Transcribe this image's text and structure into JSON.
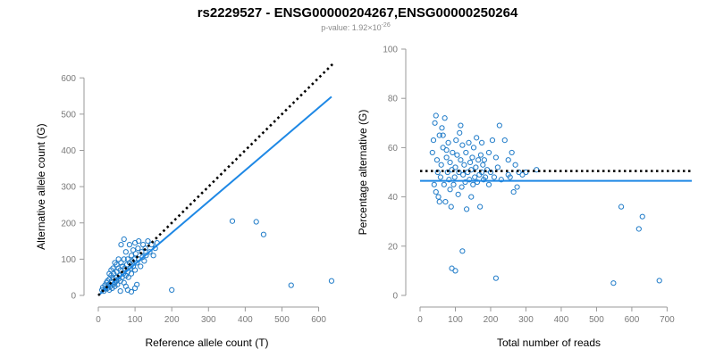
{
  "figure": {
    "title": "rs2229527 - ENSG00000204267,ENSG00000250264",
    "subtitle": "p-value: 1.92×10",
    "subtitle_exp": "-26"
  },
  "colors": {
    "points": "#1f7bc8",
    "fit": "#1e88e5",
    "reference": "#000000",
    "axis": "#9a9a9a",
    "tick_text": "#7a7a7a"
  },
  "chart_data": [
    {
      "type": "scatter",
      "title": "",
      "xlabel": "Reference allele count (T)",
      "ylabel": "Alternative allele count (G)",
      "xlim": [
        0,
        640
      ],
      "ylim": [
        0,
        640
      ],
      "xticks": [
        0,
        100,
        200,
        300,
        400,
        500,
        600
      ],
      "yticks": [
        0,
        100,
        200,
        300,
        400,
        500,
        600
      ],
      "grid": false,
      "reference_line": {
        "style": "dotted",
        "color": "#000000",
        "points": [
          [
            0,
            0
          ],
          [
            640,
            640
          ]
        ]
      },
      "fit_line": {
        "style": "solid",
        "color": "#1e88e5",
        "points": [
          [
            0,
            0
          ],
          [
            635,
            548
          ]
        ]
      },
      "points": [
        [
          10,
          15
        ],
        [
          12,
          22
        ],
        [
          15,
          12
        ],
        [
          18,
          28
        ],
        [
          20,
          18
        ],
        [
          22,
          35
        ],
        [
          25,
          20
        ],
        [
          25,
          40
        ],
        [
          28,
          30
        ],
        [
          30,
          15
        ],
        [
          30,
          45
        ],
        [
          32,
          25
        ],
        [
          35,
          38
        ],
        [
          35,
          55
        ],
        [
          38,
          20
        ],
        [
          40,
          30
        ],
        [
          40,
          48
        ],
        [
          42,
          60
        ],
        [
          45,
          35
        ],
        [
          45,
          25
        ],
        [
          48,
          50
        ],
        [
          50,
          40
        ],
        [
          50,
          65
        ],
        [
          52,
          30
        ],
        [
          55,
          45
        ],
        [
          55,
          75
        ],
        [
          58,
          55
        ],
        [
          60,
          40
        ],
        [
          60,
          70
        ],
        [
          62,
          90
        ],
        [
          65,
          50
        ],
        [
          65,
          80
        ],
        [
          68,
          60
        ],
        [
          70,
          35
        ],
        [
          70,
          100
        ],
        [
          72,
          75
        ],
        [
          75,
          55
        ],
        [
          75,
          120
        ],
        [
          78,
          85
        ],
        [
          80,
          65
        ],
        [
          80,
          100
        ],
        [
          82,
          50
        ],
        [
          85,
          90
        ],
        [
          85,
          140
        ],
        [
          88,
          75
        ],
        [
          90,
          110
        ],
        [
          90,
          60
        ],
        [
          92,
          95
        ],
        [
          95,
          80
        ],
        [
          95,
          125
        ],
        [
          98,
          100
        ],
        [
          100,
          70
        ],
        [
          100,
          145
        ],
        [
          102,
          115
        ],
        [
          105,
          90
        ],
        [
          108,
          130
        ],
        [
          110,
          100
        ],
        [
          110,
          150
        ],
        [
          115,
          80
        ],
        [
          118,
          120
        ],
        [
          120,
          105
        ],
        [
          122,
          140
        ],
        [
          125,
          95
        ],
        [
          128,
          130
        ],
        [
          130,
          110
        ],
        [
          135,
          150
        ],
        [
          140,
          120
        ],
        [
          145,
          140
        ],
        [
          150,
          110
        ],
        [
          155,
          130
        ],
        [
          160,
          145
        ],
        [
          70,
          155
        ],
        [
          62,
          140
        ],
        [
          60,
          12
        ],
        [
          75,
          25
        ],
        [
          80,
          15
        ],
        [
          90,
          10
        ],
        [
          100,
          20
        ],
        [
          105,
          30
        ],
        [
          40,
          75
        ],
        [
          45,
          90
        ],
        [
          50,
          85
        ],
        [
          55,
          100
        ],
        [
          30,
          60
        ],
        [
          35,
          70
        ],
        [
          200,
          15
        ],
        [
          365,
          205
        ],
        [
          430,
          203
        ],
        [
          450,
          168
        ],
        [
          525,
          28
        ],
        [
          635,
          40
        ]
      ]
    },
    {
      "type": "scatter",
      "title": "",
      "xlabel": "Total number of reads",
      "ylabel": "Percentage alternative (G)",
      "xlim": [
        0,
        780
      ],
      "ylim": [
        0,
        100
      ],
      "xticks": [
        0,
        100,
        200,
        300,
        400,
        500,
        600,
        700
      ],
      "yticks": [
        0,
        20,
        40,
        60,
        80,
        100
      ],
      "grid": false,
      "reference_line": {
        "style": "dotted",
        "color": "#000000",
        "points": [
          [
            0,
            50.5
          ],
          [
            770,
            50.5
          ]
        ]
      },
      "fit_line": {
        "style": "solid",
        "color": "#1e88e5",
        "points": [
          [
            0,
            46.5
          ],
          [
            770,
            46.5
          ]
        ]
      },
      "points": [
        [
          35,
          58
        ],
        [
          38,
          63
        ],
        [
          40,
          45
        ],
        [
          42,
          70
        ],
        [
          45,
          73
        ],
        [
          48,
          55
        ],
        [
          50,
          50
        ],
        [
          52,
          40
        ],
        [
          55,
          65
        ],
        [
          58,
          48
        ],
        [
          60,
          53
        ],
        [
          62,
          68
        ],
        [
          65,
          60
        ],
        [
          68,
          45
        ],
        [
          70,
          72
        ],
        [
          72,
          38
        ],
        [
          75,
          56
        ],
        [
          78,
          50
        ],
        [
          80,
          62
        ],
        [
          82,
          47
        ],
        [
          85,
          54
        ],
        [
          88,
          36
        ],
        [
          90,
          51
        ],
        [
          92,
          58
        ],
        [
          95,
          45
        ],
        [
          98,
          48
        ],
        [
          100,
          52
        ],
        [
          102,
          63
        ],
        [
          105,
          57
        ],
        [
          108,
          41
        ],
        [
          110,
          50
        ],
        [
          112,
          66
        ],
        [
          115,
          55
        ],
        [
          118,
          44
        ],
        [
          120,
          61
        ],
        [
          122,
          49
        ],
        [
          125,
          53
        ],
        [
          128,
          46
        ],
        [
          130,
          58
        ],
        [
          132,
          35
        ],
        [
          135,
          50
        ],
        [
          138,
          62
        ],
        [
          140,
          47
        ],
        [
          142,
          54
        ],
        [
          145,
          51
        ],
        [
          148,
          56
        ],
        [
          150,
          45
        ],
        [
          152,
          60
        ],
        [
          155,
          48
        ],
        [
          158,
          52
        ],
        [
          160,
          64
        ],
        [
          162,
          46
        ],
        [
          165,
          55
        ],
        [
          168,
          49
        ],
        [
          170,
          36
        ],
        [
          172,
          57
        ],
        [
          175,
          50
        ],
        [
          178,
          53
        ],
        [
          180,
          47
        ],
        [
          182,
          55
        ],
        [
          185,
          48
        ],
        [
          190,
          51
        ],
        [
          195,
          45
        ],
        [
          200,
          50
        ],
        [
          205,
          63
        ],
        [
          210,
          48
        ],
        [
          215,
          56
        ],
        [
          220,
          52
        ],
        [
          225,
          69
        ],
        [
          230,
          47
        ],
        [
          240,
          63
        ],
        [
          250,
          55
        ],
        [
          255,
          48
        ],
        [
          260,
          58
        ],
        [
          265,
          42
        ],
        [
          270,
          53
        ],
        [
          275,
          44
        ],
        [
          280,
          50
        ],
        [
          290,
          49
        ],
        [
          300,
          50
        ],
        [
          330,
          51
        ],
        [
          100,
          10
        ],
        [
          90,
          11
        ],
        [
          120,
          18
        ],
        [
          215,
          7
        ],
        [
          548,
          5
        ],
        [
          570,
          36
        ],
        [
          620,
          27
        ],
        [
          630,
          32
        ],
        [
          678,
          6
        ],
        [
          45,
          42
        ],
        [
          55,
          38
        ],
        [
          65,
          65
        ],
        [
          75,
          59
        ],
        [
          85,
          43
        ],
        [
          115,
          69
        ],
        [
          145,
          40
        ],
        [
          175,
          62
        ],
        [
          195,
          58
        ],
        [
          250,
          49
        ]
      ]
    }
  ]
}
